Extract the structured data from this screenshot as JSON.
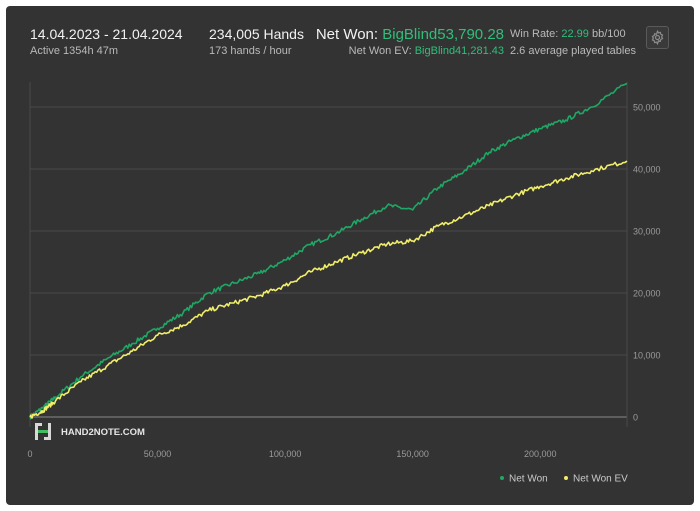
{
  "header": {
    "date_range": "14.04.2023 - 21.04.2024",
    "active_time": "Active 1354h 47m",
    "hands": "234,005 Hands",
    "hands_per_hour": "173 hands / hour",
    "net_won_label": "Net Won:",
    "net_won_value": "BigBlind53,790.28",
    "net_won_ev_label": "Net Won  EV:",
    "net_won_ev_value": "BigBlind41,281.43",
    "win_rate_label": "Win Rate:",
    "win_rate_value": "22.99",
    "win_rate_unit": "bb/100",
    "avg_tables": "2.6 average played tables"
  },
  "toolbar": {
    "settings_icon": "gear-icon"
  },
  "watermark": {
    "logo_icon": "h2n-logo-icon",
    "text": "HAND2NOTE.COM"
  },
  "colors": {
    "background": "#333333",
    "net_won": "#1fa865",
    "net_won_ev": "#f0ee6a",
    "accent_green": "#2fbf7a"
  },
  "chart_data": {
    "type": "line",
    "xlabel": "",
    "ylabel": "",
    "xlim": [
      0,
      234005
    ],
    "ylim": [
      -1000,
      56000
    ],
    "x_ticks": [
      0,
      50000,
      100000,
      150000,
      200000
    ],
    "x_tick_labels": [
      "0",
      "50,000",
      "100,000",
      "150,000",
      "200,000"
    ],
    "y_ticks": [
      0,
      10000,
      20000,
      30000,
      40000,
      50000
    ],
    "y_tick_labels": [
      "0",
      "10,000",
      "20,000",
      "30,000",
      "40,000",
      "50,000"
    ],
    "grid": true,
    "legend_position": "bottom-right",
    "series": [
      {
        "name": "Net Won",
        "color": "#1fa865",
        "x": [
          0,
          5000,
          10000,
          20000,
          30000,
          40000,
          50000,
          60000,
          70000,
          80000,
          90000,
          100000,
          110000,
          120000,
          130000,
          140000,
          150000,
          160000,
          170000,
          180000,
          190000,
          200000,
          210000,
          220000,
          234005
        ],
        "y": [
          0,
          1500,
          3200,
          6500,
          9300,
          11800,
          14300,
          16800,
          20000,
          21600,
          23200,
          25300,
          27800,
          29600,
          31900,
          34100,
          33400,
          37000,
          39600,
          42700,
          44800,
          46500,
          47900,
          50000,
          53790
        ]
      },
      {
        "name": "Net Won  EV",
        "color": "#f0ee6a",
        "x": [
          0,
          5000,
          10000,
          20000,
          30000,
          40000,
          50000,
          60000,
          70000,
          80000,
          90000,
          100000,
          110000,
          120000,
          130000,
          140000,
          150000,
          160000,
          170000,
          180000,
          190000,
          200000,
          210000,
          220000,
          234005
        ],
        "y": [
          0,
          1000,
          2600,
          5700,
          8200,
          10600,
          13200,
          14800,
          17200,
          18400,
          19600,
          21200,
          23400,
          25000,
          26500,
          27900,
          28400,
          30800,
          32400,
          34100,
          35800,
          37200,
          38500,
          39700,
          41281
        ]
      }
    ]
  }
}
